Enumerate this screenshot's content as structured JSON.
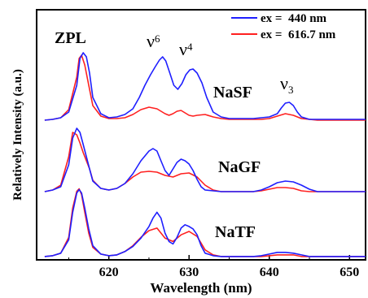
{
  "chart_data": {
    "type": "line",
    "xlabel": "Wavelength (nm)",
    "ylabel": "Relatively Intensity (a.u.)",
    "xlim": [
      611,
      652
    ],
    "x_ticks": [
      620,
      630,
      640,
      650
    ],
    "y_ticks_shown": false,
    "legend": [
      {
        "name": "ex =  440 nm",
        "color": "#1f1fff"
      },
      {
        "name": "ex =  616.7 nm",
        "color": "#ff2020"
      }
    ],
    "legend_position": "top-right",
    "annotations": {
      "zpl": "ZPL",
      "nu6_base": "ν",
      "nu6_sub": "6",
      "nu4_base": "ν",
      "nu4_sub": "4",
      "nu3_base": "ν",
      "nu3_sub": "3"
    },
    "panels": [
      {
        "name": "NaSF",
        "series": [
          {
            "name": "ex =  440 nm",
            "color": "#1f1fff",
            "x": [
              612,
              613,
              614,
              615,
              616,
              616.4,
              616.8,
              617.2,
              617.6,
              618,
              619,
              620,
              621,
              622,
              623,
              623.8,
              624.5,
              625.2,
              625.8,
              626.3,
              626.7,
              627.1,
              627.6,
              628.1,
              628.6,
              629.1,
              629.6,
              630.1,
              630.5,
              631,
              631.6,
              632.2,
              633,
              634,
              635,
              636,
              637,
              638,
              639,
              640,
              641,
              641.5,
              642,
              642.5,
              643,
              643.5,
              644,
              645,
              646,
              647,
              648,
              649,
              650,
              651,
              652
            ],
            "y": [
              0.02,
              0.03,
              0.05,
              0.12,
              0.45,
              0.78,
              0.85,
              0.8,
              0.6,
              0.3,
              0.1,
              0.05,
              0.06,
              0.09,
              0.16,
              0.3,
              0.45,
              0.58,
              0.68,
              0.76,
              0.8,
              0.75,
              0.6,
              0.45,
              0.4,
              0.47,
              0.58,
              0.64,
              0.65,
              0.6,
              0.48,
              0.3,
              0.12,
              0.06,
              0.04,
              0.04,
              0.04,
              0.04,
              0.05,
              0.06,
              0.1,
              0.17,
              0.23,
              0.24,
              0.2,
              0.12,
              0.06,
              0.03,
              0.03,
              0.03,
              0.03,
              0.03,
              0.03,
              0.03,
              0.03
            ]
          },
          {
            "name": "ex =  616.7 nm",
            "color": "#ff2020",
            "x": [
              612,
              613,
              614,
              615,
              616,
              616.3,
              616.6,
              617,
              617.5,
              618,
              619,
              620,
              621,
              622,
              623,
              624,
              625,
              626,
              627,
              627.5,
              628,
              628.5,
              629,
              629.5,
              630,
              630.5,
              631,
              632,
              633,
              634,
              635,
              636,
              637,
              638,
              639,
              640,
              641,
              642,
              643,
              644,
              645,
              646,
              647,
              648,
              649,
              650,
              651,
              652
            ],
            "y": [
              0.02,
              0.03,
              0.05,
              0.15,
              0.55,
              0.78,
              0.82,
              0.7,
              0.45,
              0.2,
              0.07,
              0.04,
              0.04,
              0.05,
              0.09,
              0.15,
              0.18,
              0.16,
              0.1,
              0.08,
              0.1,
              0.13,
              0.14,
              0.11,
              0.08,
              0.07,
              0.08,
              0.09,
              0.06,
              0.04,
              0.03,
              0.03,
              0.03,
              0.03,
              0.03,
              0.04,
              0.07,
              0.1,
              0.08,
              0.04,
              0.03,
              0.02,
              0.02,
              0.02,
              0.02,
              0.02,
              0.02,
              0.02
            ]
          }
        ]
      },
      {
        "name": "NaGF",
        "series": [
          {
            "name": "ex =  440 nm",
            "color": "#1f1fff",
            "x": [
              612,
              613,
              614,
              615,
              615.5,
              616,
              616.4,
              616.8,
              617.2,
              617.6,
              618,
              619,
              620,
              621,
              622,
              623,
              624,
              625,
              625.5,
              626,
              626.5,
              627,
              627.5,
              628,
              628.5,
              629,
              629.5,
              630,
              630.5,
              631,
              631.5,
              632,
              633,
              634,
              635,
              636,
              637,
              638,
              639,
              640,
              641,
              642,
              643,
              644,
              645,
              646,
              647,
              648,
              649,
              650,
              651,
              652
            ],
            "y": [
              0.02,
              0.04,
              0.08,
              0.35,
              0.68,
              0.8,
              0.75,
              0.6,
              0.45,
              0.3,
              0.15,
              0.06,
              0.04,
              0.06,
              0.12,
              0.24,
              0.4,
              0.52,
              0.55,
              0.52,
              0.4,
              0.28,
              0.22,
              0.3,
              0.38,
              0.42,
              0.4,
              0.36,
              0.28,
              0.17,
              0.08,
              0.04,
              0.03,
              0.02,
              0.02,
              0.02,
              0.02,
              0.02,
              0.04,
              0.08,
              0.13,
              0.15,
              0.14,
              0.1,
              0.05,
              0.02,
              0.02,
              0.02,
              0.02,
              0.02,
              0.02,
              0.02
            ]
          },
          {
            "name": "ex =  616.7 nm",
            "color": "#ff2020",
            "x": [
              612,
              613,
              614,
              615,
              615.5,
              616,
              616.4,
              616.8,
              617.2,
              617.6,
              618,
              619,
              620,
              621,
              622,
              623,
              624,
              625,
              626,
              627,
              628,
              629,
              630,
              631,
              632,
              633,
              634,
              635,
              636,
              637,
              638,
              639,
              640,
              641,
              642,
              643,
              644,
              645,
              646,
              647,
              648,
              649,
              650,
              651,
              652
            ],
            "y": [
              0.02,
              0.04,
              0.1,
              0.45,
              0.75,
              0.72,
              0.62,
              0.5,
              0.4,
              0.3,
              0.16,
              0.06,
              0.04,
              0.06,
              0.12,
              0.2,
              0.26,
              0.27,
              0.26,
              0.22,
              0.2,
              0.24,
              0.25,
              0.2,
              0.1,
              0.04,
              0.02,
              0.02,
              0.02,
              0.02,
              0.02,
              0.03,
              0.05,
              0.07,
              0.07,
              0.06,
              0.03,
              0.02,
              0.02,
              0.02,
              0.02,
              0.02,
              0.02,
              0.02,
              0.02
            ]
          }
        ]
      },
      {
        "name": "NaTF",
        "series": [
          {
            "name": "ex =  440 nm",
            "color": "#1f1fff",
            "x": [
              612,
              613,
              614,
              615,
              615.5,
              616,
              616.3,
              616.6,
              617,
              617.5,
              618,
              619,
              620,
              621,
              622,
              623,
              624,
              625,
              625.5,
              626,
              626.5,
              627,
              627.5,
              628,
              628.5,
              629,
              629.5,
              630,
              630.5,
              631,
              631.5,
              632,
              633,
              634,
              635,
              636,
              637,
              638,
              639,
              640,
              641,
              642,
              643,
              644,
              645,
              646,
              647,
              648,
              649,
              650,
              651,
              652
            ],
            "y": [
              0.02,
              0.03,
              0.06,
              0.22,
              0.55,
              0.78,
              0.82,
              0.78,
              0.6,
              0.35,
              0.15,
              0.05,
              0.03,
              0.04,
              0.08,
              0.14,
              0.24,
              0.38,
              0.48,
              0.55,
              0.48,
              0.3,
              0.2,
              0.17,
              0.25,
              0.36,
              0.4,
              0.38,
              0.35,
              0.28,
              0.15,
              0.06,
              0.03,
              0.02,
              0.02,
              0.02,
              0.02,
              0.02,
              0.03,
              0.05,
              0.07,
              0.07,
              0.06,
              0.04,
              0.02,
              0.02,
              0.02,
              0.02,
              0.02,
              0.02,
              0.02,
              0.02
            ]
          },
          {
            "name": "ex =  616.7 nm",
            "color": "#ff2020",
            "x": [
              612,
              613,
              614,
              615,
              615.5,
              616,
              616.3,
              616.6,
              617,
              617.5,
              618,
              619,
              620,
              621,
              622,
              623,
              624,
              625,
              626,
              627,
              628,
              629,
              630,
              631,
              632,
              633,
              634,
              635,
              636,
              637,
              638,
              639,
              640,
              641,
              642,
              643,
              644,
              645,
              646,
              647,
              648,
              649,
              650,
              651,
              652
            ],
            "y": [
              0.02,
              0.03,
              0.06,
              0.25,
              0.6,
              0.8,
              0.83,
              0.76,
              0.55,
              0.3,
              0.13,
              0.05,
              0.03,
              0.04,
              0.08,
              0.15,
              0.25,
              0.33,
              0.36,
              0.24,
              0.2,
              0.28,
              0.32,
              0.26,
              0.1,
              0.04,
              0.02,
              0.02,
              0.02,
              0.02,
              0.02,
              0.02,
              0.03,
              0.04,
              0.04,
              0.04,
              0.02,
              0.02,
              0.02,
              0.02,
              0.02,
              0.02,
              0.02,
              0.02,
              0.02
            ]
          }
        ]
      }
    ]
  }
}
